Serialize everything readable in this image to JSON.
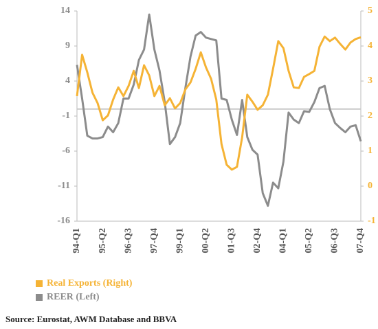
{
  "chart_data": {
    "type": "line",
    "categories": [
      "94-Q1",
      null,
      null,
      null,
      null,
      "95-Q2",
      null,
      null,
      null,
      null,
      "96-Q3",
      null,
      null,
      null,
      null,
      "97-Q4",
      null,
      null,
      null,
      null,
      "99-Q1",
      null,
      null,
      null,
      null,
      "00-Q2",
      null,
      null,
      null,
      null,
      "01-Q3",
      null,
      null,
      null,
      null,
      "02-Q4",
      null,
      null,
      null,
      null,
      "04-Q1",
      null,
      null,
      null,
      null,
      "05-Q2",
      null,
      null,
      null,
      null,
      "06-Q3",
      null,
      null,
      null,
      null,
      "07-Q4"
    ],
    "series": [
      {
        "name": "Real Exports (Right)",
        "color": "#f5b335",
        "axis": "y2",
        "values": [
          2.57,
          3.75,
          3.25,
          2.67,
          2.37,
          1.88,
          2.02,
          2.47,
          2.82,
          2.57,
          2.86,
          3.29,
          2.8,
          3.45,
          3.16,
          2.57,
          2.86,
          2.31,
          2.51,
          2.22,
          2.37,
          2.76,
          2.96,
          3.35,
          3.82,
          3.39,
          3.06,
          2.47,
          1.2,
          0.61,
          0.47,
          0.55,
          1.39,
          2.61,
          2.41,
          2.18,
          2.31,
          2.61,
          3.35,
          4.14,
          3.94,
          3.29,
          2.82,
          2.8,
          3.12,
          3.2,
          3.29,
          3.98,
          4.27,
          4.14,
          4.24,
          4.06,
          3.9,
          4.1,
          4.2,
          4.25
        ]
      },
      {
        "name": "REER (Left)",
        "color": "#8c8c8c",
        "values": [
          6.3,
          1.5,
          -3.8,
          -4.2,
          -4.2,
          -4.0,
          -2.5,
          -3.3,
          -2.0,
          1.5,
          1.5,
          3.5,
          7.0,
          8.5,
          13.5,
          8.5,
          5.5,
          1.0,
          -5.0,
          -4.0,
          -2.0,
          3.0,
          7.5,
          10.5,
          11.0,
          10.2,
          10.0,
          9.8,
          1.5,
          1.3,
          -1.5,
          -3.7,
          1.3,
          -4.0,
          -5.8,
          -6.5,
          -12.0,
          -13.8,
          -10.5,
          -11.3,
          -7.5,
          -0.5,
          -1.5,
          -2.0,
          -0.3,
          -0.4,
          1.0,
          3.0,
          3.3,
          0.0,
          -2.0,
          -2.7,
          -3.3,
          -2.5,
          -2.3,
          -4.6
        ]
      }
    ],
    "ylim": [
      -16,
      14
    ],
    "yticks": [
      -16,
      -11,
      -6,
      -1,
      4,
      9,
      14
    ],
    "y2lim": [
      -1,
      5
    ],
    "y2ticks": [
      -1,
      0,
      1,
      2,
      3,
      4,
      5
    ],
    "source": "Source: Eurostat, AWM Database and BBVA"
  }
}
